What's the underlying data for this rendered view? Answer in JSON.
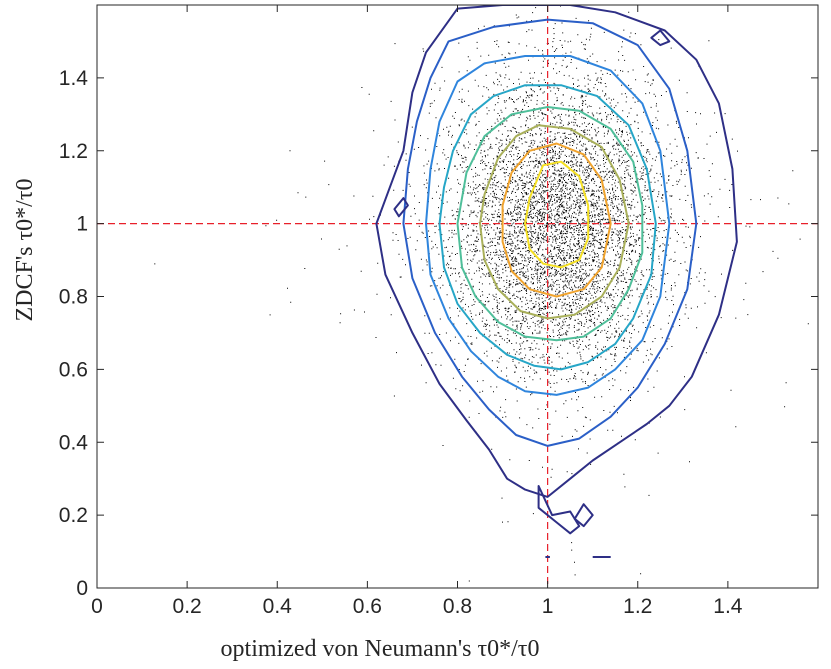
{
  "chart_data": {
    "type": "scatter",
    "title": "",
    "xlabel": "optimized von Neumann's τ0*/τ0",
    "ylabel": "ZDCF's τ0*/τ0",
    "xlim": [
      0,
      1.6
    ],
    "ylim": [
      0,
      1.6
    ],
    "xticks": [
      0,
      0.2,
      0.4,
      0.6,
      0.8,
      1,
      1.2,
      1.4
    ],
    "xtick_labels": [
      "0",
      "0.2",
      "0.4",
      "0.6",
      "0.8",
      "1",
      "1.2",
      "1.4"
    ],
    "yticks": [
      0,
      0.2,
      0.4,
      0.6,
      0.8,
      1,
      1.2,
      1.4
    ],
    "ytick_labels": [
      "0",
      "0.2",
      "0.4",
      "0.6",
      "0.8",
      "1",
      "1.2",
      "1.4"
    ],
    "grid": false,
    "reference_lines": {
      "x": 1,
      "y": 1,
      "color": "#e8202a",
      "style": "dashed"
    },
    "scatter": {
      "color": "#000000",
      "center": [
        1.02,
        1.0
      ],
      "spread": [
        0.12,
        0.2
      ]
    },
    "contours": [
      {
        "color": "#2e2f86",
        "points": [
          [
            0.8,
            1.59
          ],
          [
            0.73,
            1.47
          ],
          [
            0.7,
            1.36
          ],
          [
            0.68,
            1.2
          ],
          [
            0.65,
            1.1
          ],
          [
            0.62,
            1.0
          ],
          [
            0.64,
            0.86
          ],
          [
            0.7,
            0.7
          ],
          [
            0.76,
            0.56
          ],
          [
            0.82,
            0.46
          ],
          [
            0.87,
            0.38
          ],
          [
            0.91,
            0.3
          ],
          [
            0.95,
            0.27
          ],
          [
            1.0,
            0.25
          ],
          [
            1.05,
            0.3
          ],
          [
            1.1,
            0.35
          ],
          [
            1.16,
            0.4
          ],
          [
            1.22,
            0.45
          ],
          [
            1.27,
            0.5
          ],
          [
            1.32,
            0.58
          ],
          [
            1.38,
            0.75
          ],
          [
            1.42,
            0.95
          ],
          [
            1.41,
            1.15
          ],
          [
            1.38,
            1.33
          ],
          [
            1.33,
            1.45
          ],
          [
            1.26,
            1.53
          ],
          [
            1.15,
            1.58
          ],
          [
            1.05,
            1.6
          ],
          [
            0.9,
            1.6
          ]
        ]
      },
      {
        "color": "#2b5fc7",
        "points": [
          [
            0.78,
            1.5
          ],
          [
            0.74,
            1.4
          ],
          [
            0.71,
            1.28
          ],
          [
            0.69,
            1.15
          ],
          [
            0.68,
            1.0
          ],
          [
            0.7,
            0.85
          ],
          [
            0.75,
            0.7
          ],
          [
            0.81,
            0.58
          ],
          [
            0.87,
            0.49
          ],
          [
            0.93,
            0.42
          ],
          [
            1.0,
            0.39
          ],
          [
            1.07,
            0.41
          ],
          [
            1.14,
            0.47
          ],
          [
            1.2,
            0.55
          ],
          [
            1.26,
            0.67
          ],
          [
            1.31,
            0.82
          ],
          [
            1.33,
            1.0
          ],
          [
            1.31,
            1.2
          ],
          [
            1.27,
            1.37
          ],
          [
            1.2,
            1.49
          ],
          [
            1.1,
            1.55
          ],
          [
            1.0,
            1.56
          ],
          [
            0.88,
            1.54
          ]
        ]
      },
      {
        "color": "#2f85dd",
        "points": [
          [
            0.8,
            1.39
          ],
          [
            0.76,
            1.28
          ],
          [
            0.74,
            1.15
          ],
          [
            0.73,
            1.0
          ],
          [
            0.74,
            0.86
          ],
          [
            0.78,
            0.74
          ],
          [
            0.83,
            0.65
          ],
          [
            0.89,
            0.58
          ],
          [
            0.95,
            0.54
          ],
          [
            1.02,
            0.53
          ],
          [
            1.09,
            0.55
          ],
          [
            1.15,
            0.6
          ],
          [
            1.21,
            0.68
          ],
          [
            1.25,
            0.8
          ],
          [
            1.27,
            1.0
          ],
          [
            1.25,
            1.2
          ],
          [
            1.21,
            1.33
          ],
          [
            1.14,
            1.42
          ],
          [
            1.05,
            1.46
          ],
          [
            0.95,
            1.46
          ],
          [
            0.86,
            1.44
          ]
        ]
      },
      {
        "color": "#26a6c7",
        "points": [
          [
            0.83,
            1.3
          ],
          [
            0.79,
            1.2
          ],
          [
            0.77,
            1.1
          ],
          [
            0.76,
            1.0
          ],
          [
            0.77,
            0.88
          ],
          [
            0.8,
            0.78
          ],
          [
            0.85,
            0.7
          ],
          [
            0.91,
            0.64
          ],
          [
            0.97,
            0.61
          ],
          [
            1.03,
            0.6
          ],
          [
            1.09,
            0.62
          ],
          [
            1.15,
            0.67
          ],
          [
            1.19,
            0.74
          ],
          [
            1.23,
            0.86
          ],
          [
            1.24,
            1.0
          ],
          [
            1.22,
            1.15
          ],
          [
            1.18,
            1.27
          ],
          [
            1.11,
            1.35
          ],
          [
            1.03,
            1.38
          ],
          [
            0.95,
            1.38
          ],
          [
            0.88,
            1.35
          ]
        ]
      },
      {
        "color": "#4fbf9a",
        "points": [
          [
            0.86,
            1.24
          ],
          [
            0.82,
            1.14
          ],
          [
            0.8,
            1.0
          ],
          [
            0.81,
            0.88
          ],
          [
            0.84,
            0.8
          ],
          [
            0.89,
            0.73
          ],
          [
            0.95,
            0.69
          ],
          [
            1.02,
            0.68
          ],
          [
            1.08,
            0.69
          ],
          [
            1.14,
            0.74
          ],
          [
            1.18,
            0.82
          ],
          [
            1.21,
            0.92
          ],
          [
            1.21,
            1.05
          ],
          [
            1.19,
            1.17
          ],
          [
            1.14,
            1.26
          ],
          [
            1.07,
            1.31
          ],
          [
            1.0,
            1.32
          ],
          [
            0.92,
            1.3
          ]
        ]
      },
      {
        "color": "#a9b05a",
        "points": [
          [
            0.89,
            1.18
          ],
          [
            0.86,
            1.08
          ],
          [
            0.85,
            1.0
          ],
          [
            0.86,
            0.9
          ],
          [
            0.89,
            0.82
          ],
          [
            0.94,
            0.76
          ],
          [
            1.0,
            0.74
          ],
          [
            1.06,
            0.75
          ],
          [
            1.12,
            0.8
          ],
          [
            1.16,
            0.88
          ],
          [
            1.18,
            1.0
          ],
          [
            1.16,
            1.12
          ],
          [
            1.12,
            1.21
          ],
          [
            1.05,
            1.26
          ],
          [
            0.98,
            1.27
          ],
          [
            0.93,
            1.24
          ]
        ]
      },
      {
        "color": "#f0a32d",
        "points": [
          [
            0.92,
            1.14
          ],
          [
            0.9,
            1.05
          ],
          [
            0.9,
            0.95
          ],
          [
            0.92,
            0.87
          ],
          [
            0.96,
            0.82
          ],
          [
            1.02,
            0.8
          ],
          [
            1.08,
            0.82
          ],
          [
            1.12,
            0.88
          ],
          [
            1.14,
            1.0
          ],
          [
            1.12,
            1.12
          ],
          [
            1.08,
            1.19
          ],
          [
            1.02,
            1.22
          ],
          [
            0.96,
            1.2
          ]
        ]
      },
      {
        "color": "#f5e124",
        "points": [
          [
            0.96,
            1.07
          ],
          [
            0.95,
            1.0
          ],
          [
            0.96,
            0.93
          ],
          [
            0.99,
            0.89
          ],
          [
            1.03,
            0.88
          ],
          [
            1.07,
            0.9
          ],
          [
            1.09,
            0.96
          ],
          [
            1.09,
            1.05
          ],
          [
            1.07,
            1.13
          ],
          [
            1.03,
            1.17
          ],
          [
            0.99,
            1.16
          ]
        ]
      },
      {
        "color": "#2e2f86",
        "points": [
          [
            0.66,
            1.04
          ],
          [
            0.68,
            1.07
          ],
          [
            0.69,
            1.05
          ],
          [
            0.67,
            1.02
          ],
          [
            0.66,
            1.04
          ]
        ]
      },
      {
        "color": "#2e2f86",
        "points": [
          [
            0.98,
            0.28
          ],
          [
            1.01,
            0.2
          ],
          [
            1.05,
            0.21
          ],
          [
            1.07,
            0.17
          ],
          [
            1.05,
            0.15
          ],
          [
            1.02,
            0.18
          ],
          [
            0.98,
            0.22
          ],
          [
            0.98,
            0.28
          ]
        ]
      },
      {
        "color": "#2e2f86",
        "points": [
          [
            1.06,
            0.19
          ],
          [
            1.08,
            0.23
          ],
          [
            1.1,
            0.2
          ],
          [
            1.08,
            0.17
          ],
          [
            1.06,
            0.19
          ]
        ]
      },
      {
        "color": "#2e2f86",
        "points": [
          [
            1.23,
            1.51
          ],
          [
            1.25,
            1.49
          ],
          [
            1.27,
            1.5
          ],
          [
            1.25,
            1.53
          ],
          [
            1.23,
            1.51
          ]
        ]
      },
      {
        "color": "#2e2f86",
        "points": [
          [
            1.1,
            0.085
          ],
          [
            1.14,
            0.085
          ]
        ]
      },
      {
        "color": "#2e2f86",
        "points": [
          [
            0.995,
            0.085
          ],
          [
            1.005,
            0.085
          ]
        ]
      }
    ]
  }
}
